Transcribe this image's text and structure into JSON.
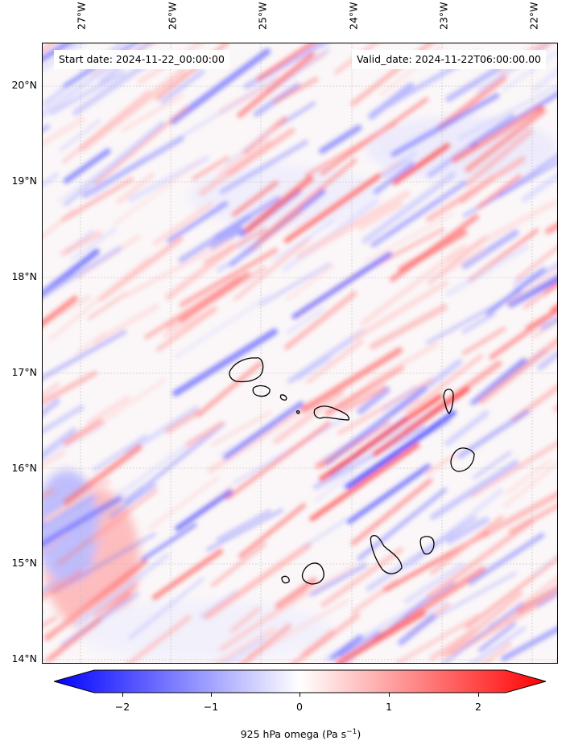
{
  "header": {
    "start_date": "Start date: 2024-11-22_00:00:00",
    "valid_date": "Valid_date: 2024-11-22T06:00:00.00"
  },
  "map": {
    "lon_labels": [
      "27°W",
      "26°W",
      "25°W",
      "24°W",
      "23°W",
      "22°W"
    ],
    "lat_labels": [
      "20°N",
      "19°N",
      "18°N",
      "17°N",
      "16°N",
      "15°N",
      "14°N"
    ],
    "gridlines": "dashed",
    "colormap": "bwr"
  },
  "colorbar": {
    "tick_labels": [
      "−2",
      "−1",
      "0",
      "1",
      "2"
    ],
    "label_main": "925 hPa omega (Pa s",
    "label_sup": "−1",
    "label_end": ")",
    "min_color": "#0000ff",
    "mid_color": "#ffffff",
    "max_color": "#ff0000"
  }
}
